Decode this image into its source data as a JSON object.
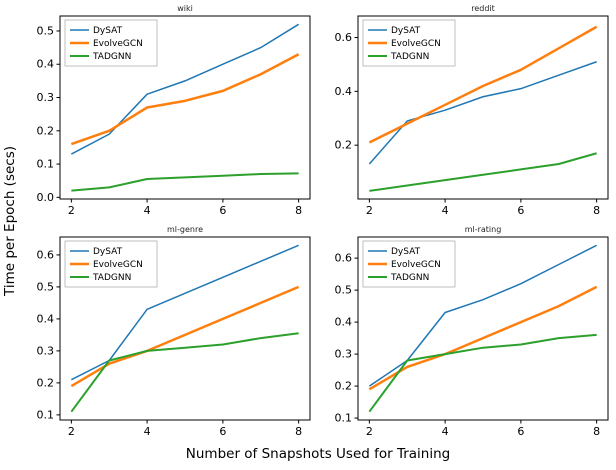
{
  "figure": {
    "ylabel": "Time per Epoch (secs)",
    "xlabel": "Number of Snapshots Used for Training"
  },
  "style": {
    "background": "#ffffff",
    "spine_color": "#000000",
    "legend_border": "#b0b0b0"
  },
  "chart_data": [
    {
      "type": "line",
      "title": "wiki",
      "x": [
        2,
        3,
        4,
        5,
        6,
        7,
        8
      ],
      "xlim": [
        1.7,
        8.3
      ],
      "xticks": [
        2,
        4,
        6,
        8
      ],
      "ylim": [
        -0.005,
        0.545
      ],
      "yticks": [
        0.0,
        0.1,
        0.2,
        0.3,
        0.4,
        0.5
      ],
      "legend_position": "upper left",
      "series": [
        {
          "name": "DySAT",
          "color": "#1f77b4",
          "width": 1.5,
          "values": [
            0.13,
            0.19,
            0.31,
            0.35,
            0.4,
            0.45,
            0.52
          ]
        },
        {
          "name": "EvolveGCN",
          "color": "#ff7f0e",
          "width": 2.5,
          "values": [
            0.16,
            0.2,
            0.27,
            0.29,
            0.32,
            0.37,
            0.43
          ]
        },
        {
          "name": "TADGNN",
          "color": "#2ca02c",
          "width": 2.0,
          "values": [
            0.02,
            0.03,
            0.055,
            0.06,
            0.065,
            0.07,
            0.072
          ]
        }
      ]
    },
    {
      "type": "line",
      "title": "reddit",
      "x": [
        2,
        3,
        4,
        5,
        6,
        7,
        8
      ],
      "xlim": [
        1.7,
        8.3
      ],
      "xticks": [
        2,
        4,
        6,
        8
      ],
      "ylim": [
        0.0,
        0.68
      ],
      "yticks": [
        0.2,
        0.4,
        0.6
      ],
      "legend_position": "upper left",
      "series": [
        {
          "name": "DySAT",
          "color": "#1f77b4",
          "width": 1.5,
          "values": [
            0.13,
            0.29,
            0.33,
            0.38,
            0.41,
            0.46,
            0.51
          ]
        },
        {
          "name": "EvolveGCN",
          "color": "#ff7f0e",
          "width": 2.5,
          "values": [
            0.21,
            0.28,
            0.35,
            0.42,
            0.48,
            0.56,
            0.64
          ]
        },
        {
          "name": "TADGNN",
          "color": "#2ca02c",
          "width": 2.0,
          "values": [
            0.03,
            0.05,
            0.07,
            0.09,
            0.11,
            0.13,
            0.17
          ]
        }
      ]
    },
    {
      "type": "line",
      "title": "ml-genre",
      "x": [
        2,
        3,
        4,
        5,
        6,
        7,
        8
      ],
      "xlim": [
        1.7,
        8.3
      ],
      "xticks": [
        2,
        4,
        6,
        8
      ],
      "ylim": [
        0.084,
        0.656
      ],
      "yticks": [
        0.1,
        0.2,
        0.3,
        0.4,
        0.5,
        0.6
      ],
      "legend_position": "upper left",
      "series": [
        {
          "name": "DySAT",
          "color": "#1f77b4",
          "width": 1.5,
          "values": [
            0.21,
            0.27,
            0.43,
            0.48,
            0.53,
            0.58,
            0.63
          ]
        },
        {
          "name": "EvolveGCN",
          "color": "#ff7f0e",
          "width": 2.5,
          "values": [
            0.19,
            0.26,
            0.3,
            0.35,
            0.4,
            0.45,
            0.5
          ]
        },
        {
          "name": "TADGNN",
          "color": "#2ca02c",
          "width": 2.0,
          "values": [
            0.11,
            0.27,
            0.3,
            0.31,
            0.32,
            0.34,
            0.355
          ]
        }
      ]
    },
    {
      "type": "line",
      "title": "ml-rating",
      "x": [
        2,
        3,
        4,
        5,
        6,
        7,
        8
      ],
      "xlim": [
        1.7,
        8.3
      ],
      "xticks": [
        2,
        4,
        6,
        8
      ],
      "ylim": [
        0.094,
        0.666
      ],
      "yticks": [
        0.1,
        0.2,
        0.3,
        0.4,
        0.5,
        0.6
      ],
      "legend_position": "upper left",
      "series": [
        {
          "name": "DySAT",
          "color": "#1f77b4",
          "width": 1.5,
          "values": [
            0.2,
            0.28,
            0.43,
            0.47,
            0.52,
            0.58,
            0.64
          ]
        },
        {
          "name": "EvolveGCN",
          "color": "#ff7f0e",
          "width": 2.5,
          "values": [
            0.19,
            0.26,
            0.3,
            0.35,
            0.4,
            0.45,
            0.51
          ]
        },
        {
          "name": "TADGNN",
          "color": "#2ca02c",
          "width": 2.0,
          "values": [
            0.12,
            0.28,
            0.3,
            0.32,
            0.33,
            0.35,
            0.36
          ]
        }
      ]
    }
  ]
}
